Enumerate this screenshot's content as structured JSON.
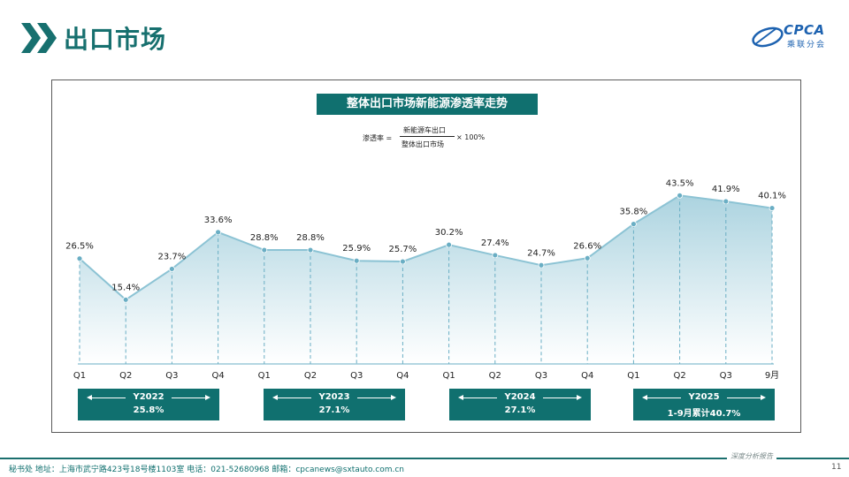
{
  "header": {
    "title": "出口市场",
    "logo_text": "CPCA",
    "logo_sub": "乘联分会"
  },
  "chart_title": "整体出口市场新能源渗透率走势",
  "formula": {
    "label": "渗透率 =",
    "numerator": "新能源车出口",
    "denominator": "整体出口市场",
    "multiplier": "× 100%"
  },
  "chart_data": {
    "type": "area",
    "categories": [
      "Q1",
      "Q2",
      "Q3",
      "Q4",
      "Q1",
      "Q2",
      "Q3",
      "Q4",
      "Q1",
      "Q2",
      "Q3",
      "Q4",
      "Q1",
      "Q2",
      "Q3",
      "9月"
    ],
    "values": [
      26.5,
      15.4,
      23.7,
      33.6,
      28.8,
      28.8,
      25.9,
      25.7,
      30.2,
      27.4,
      24.7,
      26.6,
      35.8,
      43.5,
      41.9,
      40.1
    ],
    "labels": [
      "26.5%",
      "15.4%",
      "23.7%",
      "33.6%",
      "28.8%",
      "28.8%",
      "25.9%",
      "25.7%",
      "30.2%",
      "27.4%",
      "24.7%",
      "26.6%",
      "35.8%",
      "43.5%",
      "41.9%",
      "40.1%"
    ],
    "ylim": [
      0,
      50
    ],
    "grid": false,
    "colors": {
      "line": "#8cc3d4",
      "marker": "#6aaec4",
      "fill_top": "#a7d1de",
      "fill_bottom": "#ffffff",
      "dash": "#6aaec4"
    }
  },
  "year_groups": [
    {
      "label": "Y2022",
      "value": "25.8%"
    },
    {
      "label": "Y2023",
      "value": "27.1%"
    },
    {
      "label": "Y2024",
      "value": "27.1%"
    },
    {
      "label": "Y2025",
      "value": "1-9月累计40.7%"
    }
  ],
  "footer": {
    "text": "秘书处  地址：上海市武宁路423号18号楼1103室  电话：021-52680968  邮箱：cpcanews@sxtauto.com.cn",
    "right_text": "深度分析报告",
    "page_number": "11"
  },
  "colors": {
    "brand_teal": "#10706f",
    "logo_blue": "#1d62b0"
  }
}
